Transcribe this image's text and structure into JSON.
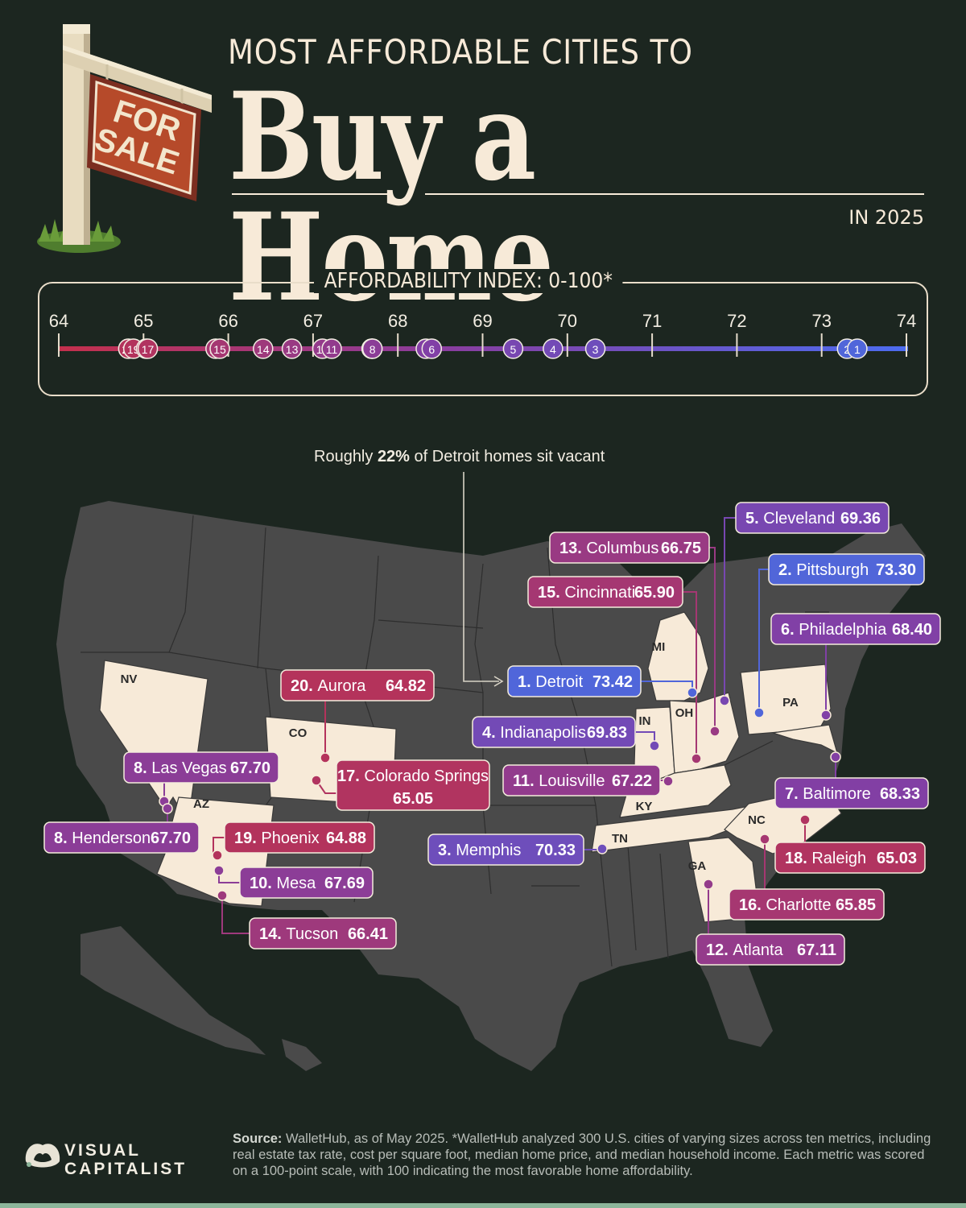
{
  "header": {
    "title_top": "MOST AFFORDABLE CITIES TO",
    "title_main": "Buy a Home",
    "title_year": "IN 2025",
    "sign_line1": "FOR",
    "sign_line2": "SALE"
  },
  "scale_title": "AFFORDABILITY INDEX: 0-100*",
  "annotation": {
    "prefix": "Roughly ",
    "highlight": "22%",
    "suffix": " of Detroit homes sit vacant"
  },
  "state_labels": [
    "NV",
    "CO",
    "AZ",
    "MI",
    "IN",
    "OH",
    "PA",
    "KY",
    "TN",
    "NC",
    "GA"
  ],
  "colors": {
    "background": "#1c2620",
    "low": "#c0304a",
    "mid": "#8040a8",
    "high": "#4a6be0",
    "land": "#4b4b4b",
    "highlight_state": "#f7ead8"
  },
  "chart_data": {
    "type": "scatter",
    "title": "Most Affordable Cities to Buy a Home in 2025",
    "xlabel": "AFFORDABILITY INDEX: 0-100*",
    "xlim": [
      64,
      74
    ],
    "xticks": [
      64,
      65,
      66,
      67,
      68,
      69,
      70,
      71,
      72,
      73,
      74
    ],
    "points": [
      {
        "rank": 1,
        "city": "Detroit",
        "value": 73.42
      },
      {
        "rank": 2,
        "city": "Pittsburgh",
        "value": 73.3
      },
      {
        "rank": 3,
        "city": "Memphis",
        "value": 70.33
      },
      {
        "rank": 4,
        "city": "Indianapolis",
        "value": 69.83
      },
      {
        "rank": 5,
        "city": "Cleveland",
        "value": 69.36
      },
      {
        "rank": 6,
        "city": "Philadelphia",
        "value": 68.4
      },
      {
        "rank": 7,
        "city": "Baltimore",
        "value": 68.33
      },
      {
        "rank": 8,
        "city": "Las Vegas",
        "value": 67.7
      },
      {
        "rank": 8,
        "city": "Henderson",
        "value": 67.7
      },
      {
        "rank": 10,
        "city": "Mesa",
        "value": 67.69
      },
      {
        "rank": 11,
        "city": "Louisville",
        "value": 67.22
      },
      {
        "rank": 12,
        "city": "Atlanta",
        "value": 67.11
      },
      {
        "rank": 13,
        "city": "Columbus",
        "value": 66.75
      },
      {
        "rank": 14,
        "city": "Tucson",
        "value": 66.41
      },
      {
        "rank": 15,
        "city": "Cincinnati",
        "value": 65.9
      },
      {
        "rank": 16,
        "city": "Charlotte",
        "value": 65.85
      },
      {
        "rank": 17,
        "city": "Colorado Springs",
        "value": 65.05
      },
      {
        "rank": 18,
        "city": "Raleigh",
        "value": 65.03
      },
      {
        "rank": 19,
        "city": "Phoenix",
        "value": 64.88
      },
      {
        "rank": 20,
        "city": "Aurora",
        "value": 64.82
      }
    ]
  },
  "map_labels": [
    {
      "rank_text": "5.",
      "city": "Cleveland",
      "value_text": "69.36",
      "rank": 5
    },
    {
      "rank_text": "13.",
      "city": "Columbus",
      "value_text": "66.75",
      "rank": 13
    },
    {
      "rank_text": "2.",
      "city": "Pittsburgh",
      "value_text": "73.30",
      "rank": 2
    },
    {
      "rank_text": "15.",
      "city": "Cincinnati",
      "value_text": "65.90",
      "rank": 15
    },
    {
      "rank_text": "6.",
      "city": "Philadelphia",
      "value_text": "68.40",
      "rank": 6
    },
    {
      "rank_text": "1.",
      "city": "Detroit",
      "value_text": "73.42",
      "rank": 1
    },
    {
      "rank_text": "20.",
      "city": "Aurora",
      "value_text": "64.82",
      "rank": 20
    },
    {
      "rank_text": "4.",
      "city": "Indianapolis",
      "value_text": "69.83",
      "rank": 4
    },
    {
      "rank_text": "17.",
      "city": "Colorado Springs",
      "value_text": "65.05",
      "rank": 17
    },
    {
      "rank_text": "8.",
      "city": "Las Vegas",
      "value_text": "67.70",
      "rank": 8
    },
    {
      "rank_text": "11.",
      "city": "Louisville",
      "value_text": "67.22",
      "rank": 11
    },
    {
      "rank_text": "7.",
      "city": "Baltimore",
      "value_text": "68.33",
      "rank": 7
    },
    {
      "rank_text": "8.",
      "city": "Henderson",
      "value_text": "67.70",
      "rank": 8
    },
    {
      "rank_text": "19.",
      "city": "Phoenix",
      "value_text": "64.88",
      "rank": 19
    },
    {
      "rank_text": "3.",
      "city": "Memphis",
      "value_text": "70.33",
      "rank": 3
    },
    {
      "rank_text": "18.",
      "city": "Raleigh",
      "value_text": "65.03",
      "rank": 18
    },
    {
      "rank_text": "10.",
      "city": "Mesa",
      "value_text": "67.69",
      "rank": 10
    },
    {
      "rank_text": "16.",
      "city": "Charlotte",
      "value_text": "65.85",
      "rank": 16
    },
    {
      "rank_text": "14.",
      "city": "Tucson",
      "value_text": "66.41",
      "rank": 14
    },
    {
      "rank_text": "12.",
      "city": "Atlanta",
      "value_text": "67.11",
      "rank": 12
    }
  ],
  "source": {
    "label": "Source:",
    "text": "WalletHub, as of May 2025. *WalletHub analyzed 300 U.S. cities of varying sizes across ten metrics, including real estate tax rate, cost per square foot, median home price, and median household income. Each metric was scored on a 100-point scale, with 100 indicating the most favorable home affordability."
  },
  "brand": {
    "line1": "VISUAL",
    "line2": "CAPITALIST"
  }
}
